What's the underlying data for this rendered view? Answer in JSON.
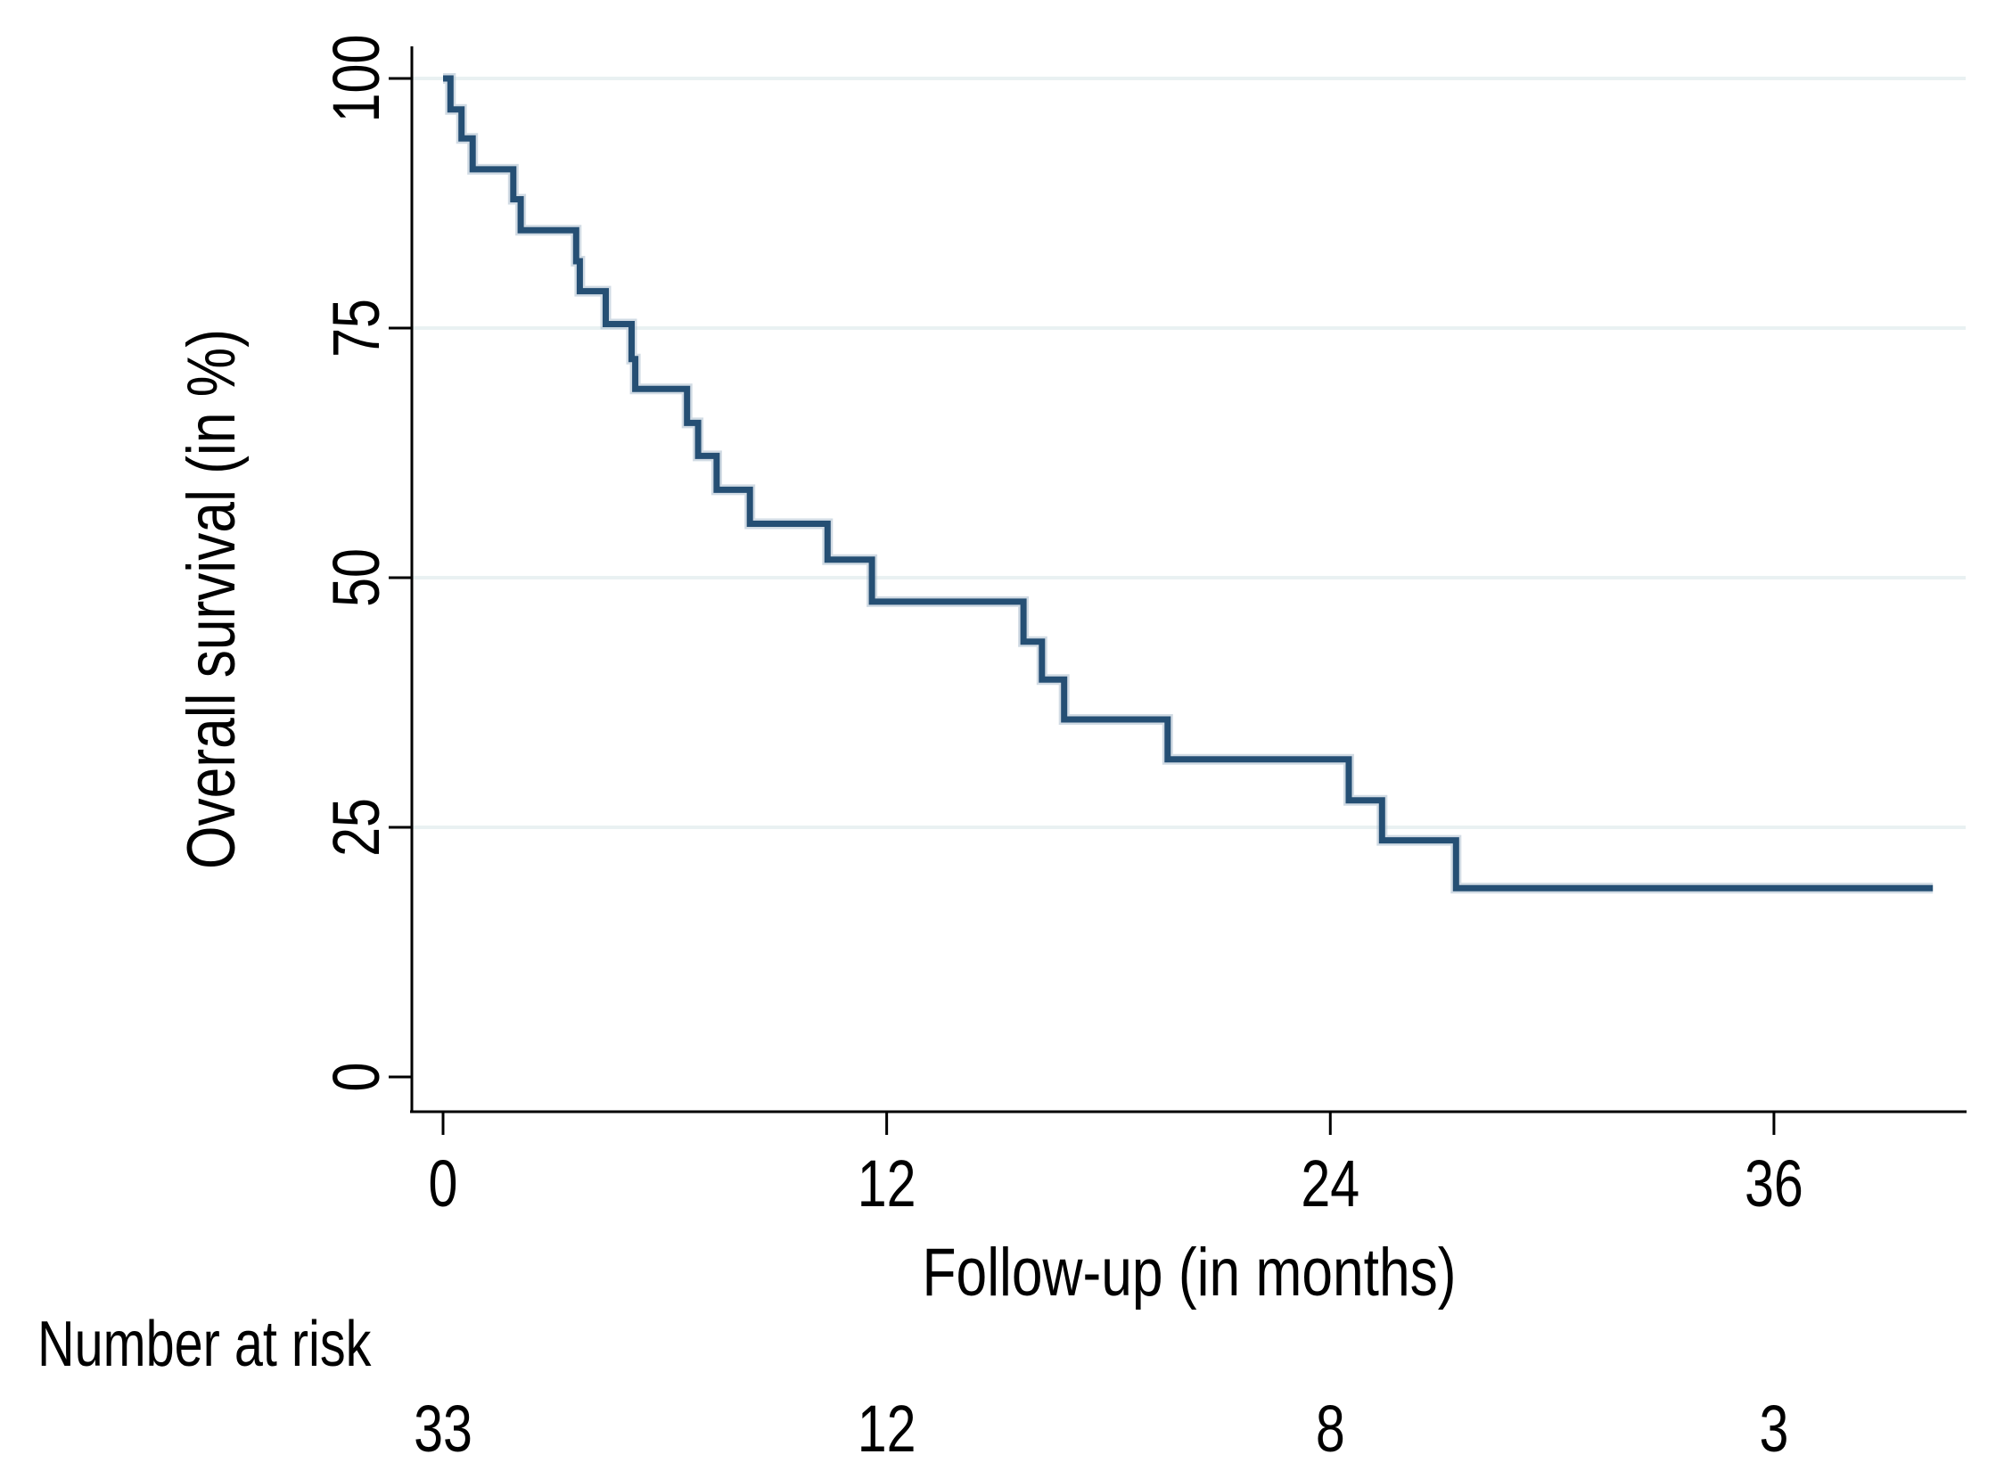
{
  "chart_data": {
    "type": "line",
    "subtype": "kaplan-meier-step-curve",
    "title": "",
    "xlabel": "Follow-up (in months)",
    "ylabel": "Overall survival (in %)",
    "xlim": [
      0,
      42
    ],
    "ylim": [
      0,
      100
    ],
    "x_ticks": [
      0,
      12,
      24,
      36
    ],
    "y_ticks": [
      0,
      25,
      50,
      75,
      100
    ],
    "grid_y_values": [
      25,
      50,
      75,
      100
    ],
    "legend": "none",
    "line_color": "#254F74",
    "grid_color": "#E9F1F2",
    "axis_color": "#000000",
    "curve_end_month": 40.3,
    "steps_units": {
      "t": "months",
      "s": "percent surviving"
    },
    "steps": [
      {
        "t": 0.0,
        "s": 100.0
      },
      {
        "t": 0.2,
        "s": 96.9
      },
      {
        "t": 0.5,
        "s": 94.0
      },
      {
        "t": 0.8,
        "s": 90.9
      },
      {
        "t": 1.9,
        "s": 87.9
      },
      {
        "t": 2.1,
        "s": 84.8
      },
      {
        "t": 3.6,
        "s": 81.7
      },
      {
        "t": 3.7,
        "s": 78.7
      },
      {
        "t": 4.4,
        "s": 75.4
      },
      {
        "t": 5.1,
        "s": 71.9
      },
      {
        "t": 5.2,
        "s": 68.9
      },
      {
        "t": 6.6,
        "s": 65.5
      },
      {
        "t": 6.9,
        "s": 62.2
      },
      {
        "t": 7.4,
        "s": 58.8
      },
      {
        "t": 8.3,
        "s": 55.4
      },
      {
        "t": 10.4,
        "s": 51.8
      },
      {
        "t": 11.6,
        "s": 47.6
      },
      {
        "t": 15.7,
        "s": 43.6
      },
      {
        "t": 16.2,
        "s": 39.8
      },
      {
        "t": 16.8,
        "s": 35.8
      },
      {
        "t": 19.6,
        "s": 31.8
      },
      {
        "t": 24.5,
        "s": 27.7
      },
      {
        "t": 25.4,
        "s": 23.7
      },
      {
        "t": 27.4,
        "s": 18.9
      },
      {
        "t": 40.3,
        "s": 18.9
      }
    ]
  },
  "risk_table": {
    "label": "Number at risk",
    "times": [
      0,
      12,
      24,
      36
    ],
    "counts": [
      33,
      12,
      8,
      3
    ]
  }
}
